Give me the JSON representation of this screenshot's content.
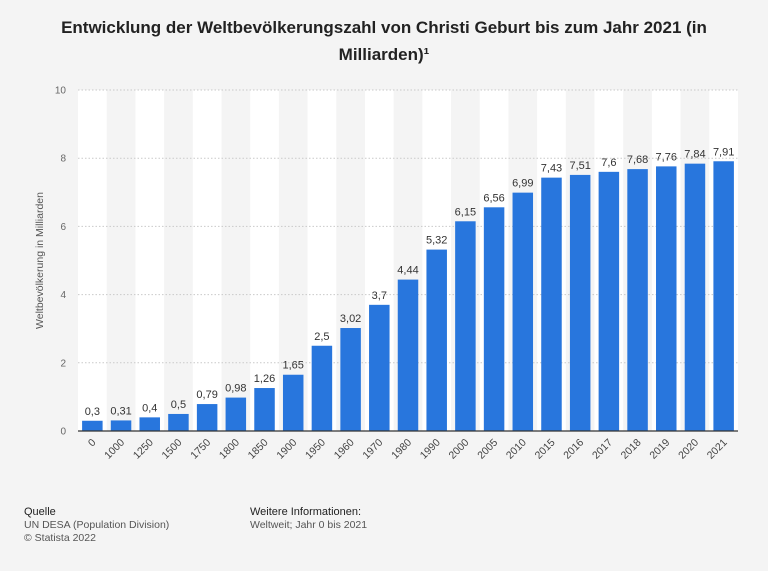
{
  "title": "Entwicklung der Weltbevölkerungszahl von Christi Geburt bis zum Jahr 2021 (in Milliarden)¹",
  "chart_data": {
    "type": "bar",
    "title": "Entwicklung der Weltbevölkerungszahl von Christi Geburt bis zum Jahr 2021 (in Milliarden)¹",
    "xlabel": "",
    "ylabel": "Weltbevölkerung in Milliarden",
    "ylim": [
      0,
      10
    ],
    "yticks": [
      0,
      2,
      4,
      6,
      8,
      10
    ],
    "categories": [
      "0",
      "1000",
      "1250",
      "1500",
      "1750",
      "1800",
      "1850",
      "1900",
      "1950",
      "1960",
      "1970",
      "1980",
      "1990",
      "2000",
      "2005",
      "2010",
      "2015",
      "2016",
      "2017",
      "2018",
      "2019",
      "2020",
      "2021"
    ],
    "values": [
      0.3,
      0.31,
      0.4,
      0.5,
      0.79,
      0.98,
      1.26,
      1.65,
      2.5,
      3.02,
      3.7,
      4.44,
      5.32,
      6.15,
      6.56,
      6.99,
      7.43,
      7.51,
      7.6,
      7.68,
      7.76,
      7.84,
      7.91
    ],
    "value_labels": [
      "0,3",
      "0,31",
      "0,4",
      "0,5",
      "0,79",
      "0,98",
      "1,26",
      "1,65",
      "2,5",
      "3,02",
      "3,7",
      "4,44",
      "5,32",
      "6,15",
      "6,56",
      "6,99",
      "7,43",
      "7,51",
      "7,6",
      "7,68",
      "7,76",
      "7,84",
      "7,91"
    ],
    "bar_color": "#2876dd",
    "grid": true
  },
  "footer": {
    "source_heading": "Quelle",
    "source_line1": "UN DESA (Population Division)",
    "source_line2": "© Statista 2022",
    "info_heading": "Weitere Informationen:",
    "info_line1": "Weltweit; Jahr 0 bis 2021"
  }
}
